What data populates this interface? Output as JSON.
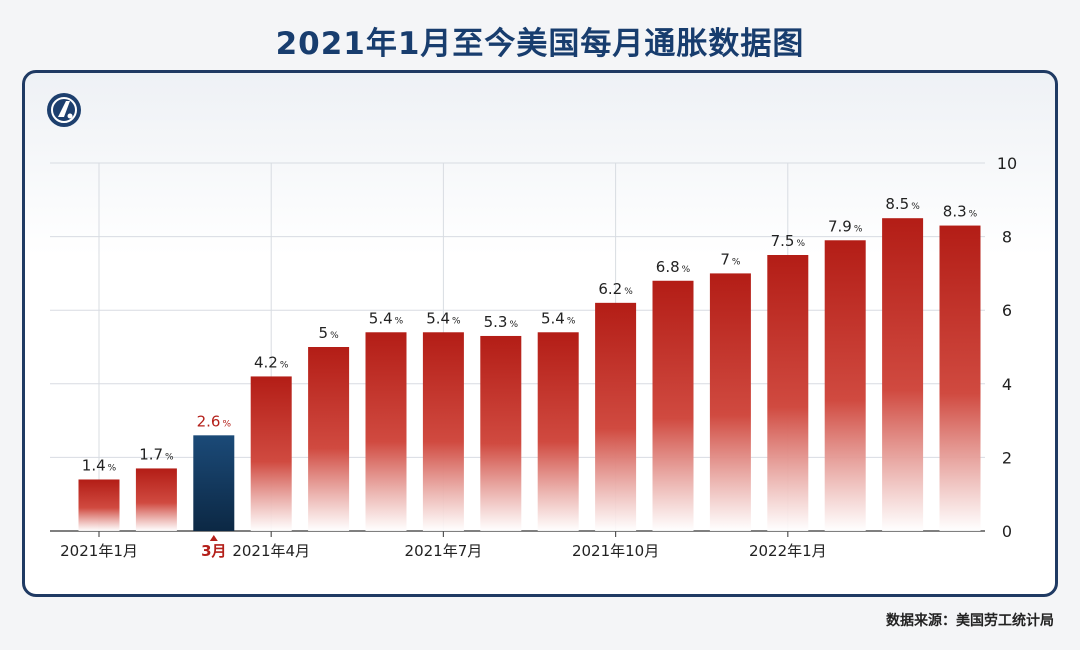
{
  "title": "2021年1月至今美国每月通胀数据图",
  "source": "数据来源：美国劳工统计局",
  "logo_icon": "news-logo-icon",
  "colors": {
    "bar": "#b31d16",
    "highlight": "#0f2f52",
    "highlight_text": "#b4201a"
  },
  "chart_data": {
    "type": "bar",
    "title": "2021年1月至今美国每月通胀数据图",
    "values": [
      1.4,
      1.7,
      2.6,
      4.2,
      5,
      5.4,
      5.4,
      5.3,
      5.4,
      6.2,
      6.8,
      7,
      7.5,
      7.9,
      8.5,
      8.3
    ],
    "value_labels": [
      "1.4",
      "1.7",
      "2.6",
      "4.2",
      "5",
      "5.4",
      "5.4",
      "5.3",
      "5.4",
      "6.2",
      "6.8",
      "7",
      "7.5",
      "7.9",
      "8.5",
      "8.3"
    ],
    "value_unit": "%",
    "highlight_index": 2,
    "x_tick_labels": [
      {
        "index": 0,
        "label": "2021年1月"
      },
      {
        "index": 2,
        "label": "3月",
        "highlight": true
      },
      {
        "index": 3,
        "label": "2021年4月"
      },
      {
        "index": 6,
        "label": "2021年7月"
      },
      {
        "index": 9,
        "label": "2021年10月"
      },
      {
        "index": 12,
        "label": "2022年1月"
      }
    ],
    "ylim": [
      0,
      10
    ],
    "y_ticks": [
      0,
      2,
      4,
      6,
      8,
      10
    ],
    "y_axis_side": "right",
    "grid": true
  }
}
